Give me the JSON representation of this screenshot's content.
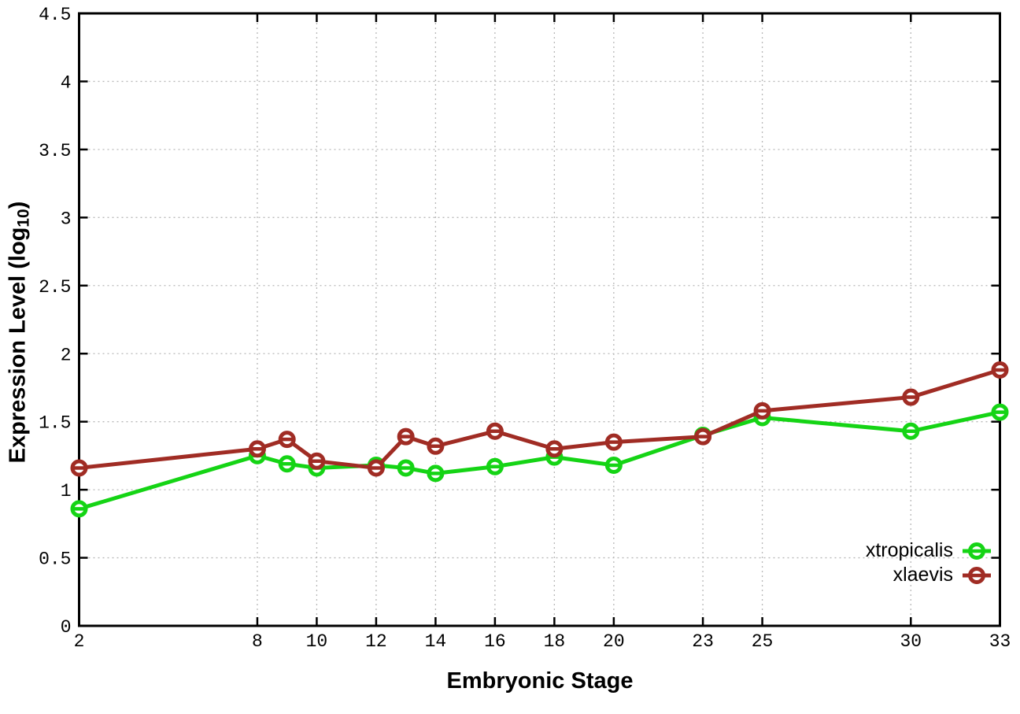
{
  "figure": {
    "background": "#ffffff",
    "xlabel": "Embryonic Stage",
    "ylabel_prefix": "Expression Level (log",
    "ylabel_subscript": "10",
    "ylabel_suffix": ")"
  },
  "legend": {
    "position": "bottom-right",
    "items": [
      {
        "label": "xtropicalis",
        "color": "#15d415"
      },
      {
        "label": "xlaevis",
        "color": "#a02c24"
      }
    ]
  },
  "chart_data": {
    "type": "line",
    "title": "",
    "xlabel": "Embryonic Stage",
    "ylabel": "Expression Level (log10)",
    "x": [
      2,
      8,
      9,
      10,
      12,
      13,
      14,
      16,
      18,
      20,
      23,
      25,
      30,
      33
    ],
    "series": [
      {
        "name": "xtropicalis",
        "color": "#15d415",
        "values": [
          0.86,
          1.25,
          1.19,
          1.16,
          1.18,
          1.16,
          1.12,
          1.17,
          1.24,
          1.18,
          1.4,
          1.53,
          1.43,
          1.57
        ]
      },
      {
        "name": "xlaevis",
        "color": "#a02c24",
        "values": [
          1.16,
          1.3,
          1.37,
          1.21,
          1.16,
          1.39,
          1.32,
          1.43,
          1.3,
          1.35,
          1.39,
          1.58,
          1.68,
          1.88
        ]
      }
    ],
    "xlim": [
      2,
      33
    ],
    "ylim": [
      0,
      4.5
    ],
    "xticks": [
      2,
      8,
      10,
      12,
      14,
      16,
      18,
      20,
      23,
      25,
      30,
      33
    ],
    "xtick_labels": [
      "2",
      "8",
      "10",
      "12",
      "14",
      "16",
      "18",
      "20",
      "23",
      "25",
      "30",
      "33"
    ],
    "yticks": [
      0,
      0.5,
      1,
      1.5,
      2,
      2.5,
      3,
      3.5,
      4,
      4.5
    ],
    "ytick_labels": [
      "0",
      "0.5",
      "1",
      "1.5",
      "2",
      "2.5",
      "3",
      "3.5",
      "4",
      "4.5"
    ],
    "grid": true,
    "grid_color": "#b8b8b8",
    "border_color": "#000000",
    "marker": "open-circle-with-horizontal-bar",
    "legend_position": "bottom-right"
  }
}
